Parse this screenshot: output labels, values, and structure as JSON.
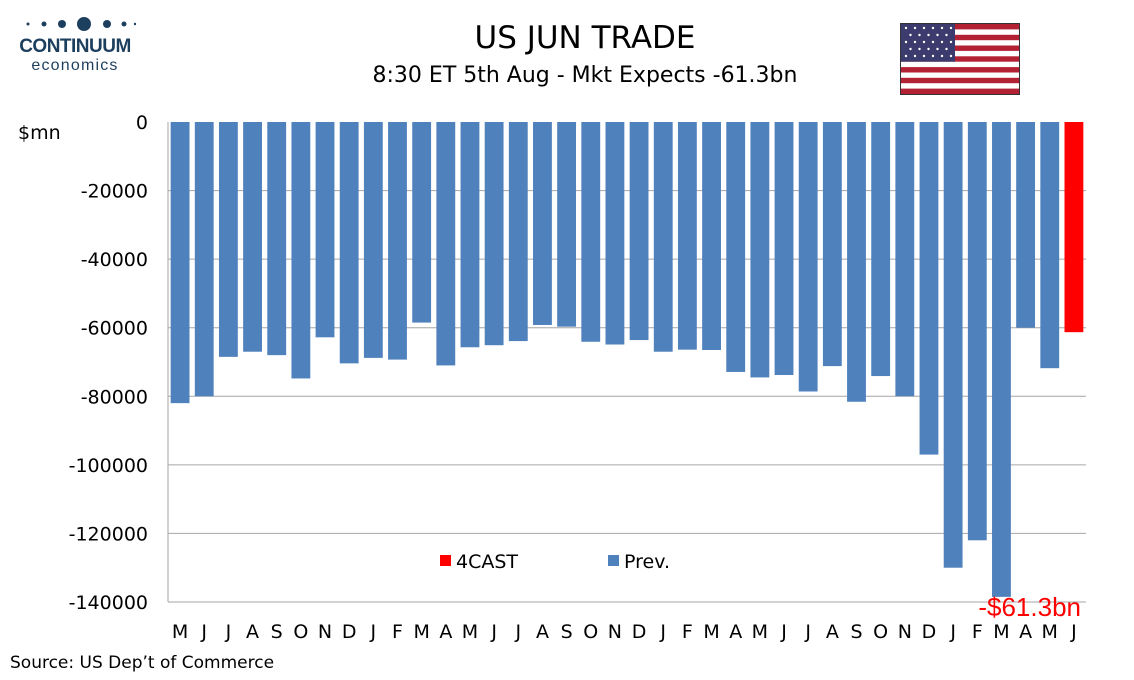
{
  "header": {
    "title": "US JUN TRADE",
    "subtitle": "8:30 ET 5th Aug - Mkt Expects -61.3bn"
  },
  "logo": {
    "word": "CONTINUUM",
    "sub": "economics"
  },
  "source": "Source: US Dep’t of Commerce",
  "colors": {
    "prev": "#4f81bd",
    "forecast": "#ff0000",
    "brand": "#1d3f5e"
  },
  "chart_data": {
    "type": "bar",
    "ylabel": "$mn",
    "ylim": [
      -140000,
      0
    ],
    "yticks": [
      0,
      -20000,
      -40000,
      -60000,
      -80000,
      -100000,
      -120000,
      -140000
    ],
    "grid": true,
    "legend_position": "bottom-center",
    "categories": [
      "M",
      "J",
      "J",
      "A",
      "S",
      "O",
      "N",
      "D",
      "J",
      "F",
      "M",
      "A",
      "M",
      "J",
      "J",
      "A",
      "S",
      "O",
      "N",
      "D",
      "J",
      "F",
      "M",
      "A",
      "M",
      "J",
      "J",
      "A",
      "S",
      "O",
      "N",
      "D",
      "J",
      "F",
      "M",
      "A",
      "M",
      "J"
    ],
    "series": [
      {
        "name": "Prev.",
        "values": [
          -82000,
          -80000,
          -68500,
          -67000,
          -68000,
          -74800,
          -62800,
          -70400,
          -68800,
          -69300,
          -58500,
          -71000,
          -65700,
          -65100,
          -63900,
          -59200,
          -59700,
          -64100,
          -64900,
          -63600,
          -67000,
          -66400,
          -66500,
          -72900,
          -74500,
          -73800,
          -78600,
          -71200,
          -81600,
          -74100,
          -80000,
          -97000,
          -130000,
          -122000,
          -138500,
          -60000,
          -71800,
          null
        ]
      },
      {
        "name": "4CAST",
        "values": [
          null,
          null,
          null,
          null,
          null,
          null,
          null,
          null,
          null,
          null,
          null,
          null,
          null,
          null,
          null,
          null,
          null,
          null,
          null,
          null,
          null,
          null,
          null,
          null,
          null,
          null,
          null,
          null,
          null,
          null,
          null,
          null,
          null,
          null,
          null,
          null,
          null,
          -61300
        ]
      }
    ],
    "annotation": "-$61.3bn"
  }
}
